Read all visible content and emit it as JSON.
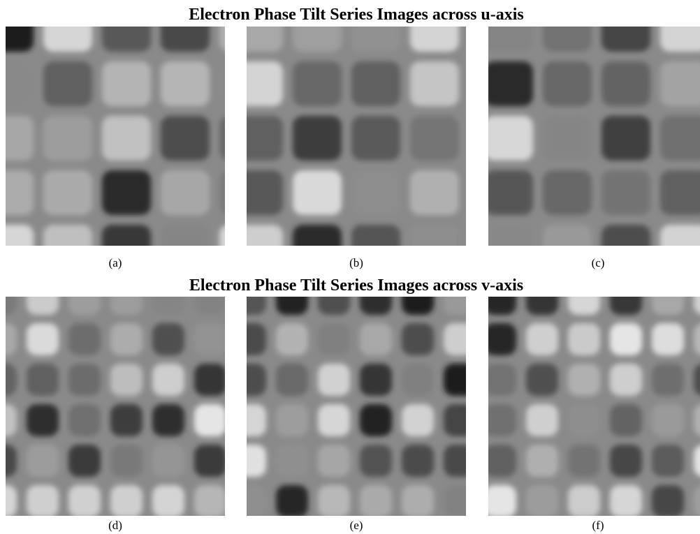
{
  "figure": {
    "rows": [
      {
        "title": "Electron Phase Tilt Series Images across u-axis",
        "panels": [
          {
            "caption": "(a)"
          },
          {
            "caption": "(b)"
          },
          {
            "caption": "(c)"
          }
        ]
      },
      {
        "title": "Electron Phase Tilt Series Images across v-axis",
        "panels": [
          {
            "caption": "(d)"
          },
          {
            "caption": "(e)"
          },
          {
            "caption": "(f)"
          }
        ]
      }
    ]
  }
}
